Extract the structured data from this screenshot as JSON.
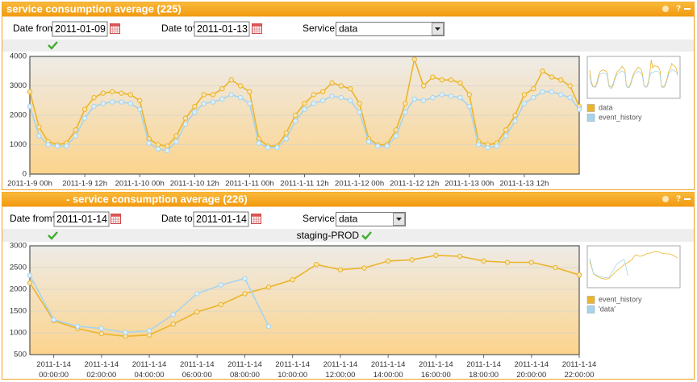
{
  "panels": [
    {
      "title": "service consumption average (225)",
      "form": {
        "date_from_label": "Date from",
        "date_from": "2011-01-09",
        "date_to_label": "Date to*",
        "date_to": "2011-01-13",
        "service_label": "Service*",
        "service": "data"
      }
    },
    {
      "title": "- service consumption average (226)",
      "form": {
        "date_from_label": "Date from*",
        "date_from": "2011-01-14",
        "date_to_label": "Date to*",
        "date_to": "2011-01-14",
        "service_label": "Service*",
        "service": "data"
      },
      "status": "staging-PROD"
    }
  ],
  "chart_data": [
    {
      "type": "line",
      "x": [
        0,
        2,
        4,
        6,
        8,
        10,
        12,
        14,
        16,
        18,
        20,
        22,
        24,
        26,
        28,
        30,
        32,
        34,
        36,
        38,
        40,
        42,
        44,
        46,
        48,
        50,
        52,
        54,
        56,
        58,
        60,
        62,
        64,
        66,
        68,
        70,
        72,
        74,
        76,
        78,
        80,
        82,
        84,
        86,
        88,
        90,
        92,
        94,
        96,
        98,
        100,
        102,
        104,
        106,
        108,
        110,
        112,
        114,
        116,
        118,
        120
      ],
      "series": [
        {
          "name": "data",
          "color": "#ebb42a",
          "values": [
            2800,
            1600,
            1100,
            1000,
            1050,
            1500,
            2200,
            2600,
            2750,
            2800,
            2750,
            2700,
            2500,
            1200,
            1000,
            950,
            1300,
            1900,
            2300,
            2700,
            2700,
            2900,
            3200,
            3000,
            2800,
            1200,
            950,
            950,
            1400,
            2000,
            2400,
            2700,
            2800,
            3100,
            3000,
            2900,
            2400,
            1200,
            1000,
            1000,
            1500,
            2400,
            3900,
            3000,
            3300,
            3200,
            3200,
            3100,
            2700,
            1100,
            1000,
            1050,
            1500,
            2000,
            2700,
            2900,
            3500,
            3300,
            3200,
            3000,
            2300
          ]
        },
        {
          "name": "event_history",
          "color": "#a6d4ee",
          "values": [
            2300,
            1300,
            1000,
            950,
            950,
            1300,
            1900,
            2300,
            2400,
            2450,
            2450,
            2400,
            2200,
            1050,
            850,
            800,
            1100,
            1700,
            2100,
            2400,
            2450,
            2550,
            2700,
            2600,
            2400,
            1050,
            900,
            900,
            1200,
            1800,
            2200,
            2400,
            2500,
            2650,
            2600,
            2500,
            2100,
            1100,
            950,
            950,
            1300,
            2100,
            2550,
            2500,
            2600,
            2700,
            2650,
            2600,
            2300,
            1000,
            900,
            950,
            1300,
            1800,
            2400,
            2600,
            2800,
            2800,
            2700,
            2600,
            2200
          ]
        }
      ],
      "xlim": [
        0,
        120
      ],
      "xticks": [
        {
          "value": 0,
          "label": "2011-1-9 00h"
        },
        {
          "value": 12,
          "label": "2011-1-9 12h"
        },
        {
          "value": 24,
          "label": "2011-1-10 00h"
        },
        {
          "value": 36,
          "label": "2011-1-10 12h"
        },
        {
          "value": 48,
          "label": "2011-1-11 00h"
        },
        {
          "value": 60,
          "label": "2011-1-11 12h"
        },
        {
          "value": 72,
          "label": "2011-1-12 00h"
        },
        {
          "value": 84,
          "label": "2011-1-12 12h"
        },
        {
          "value": 96,
          "label": "2011-1-13 00h"
        },
        {
          "value": 108,
          "label": "2011-1-13 12h"
        }
      ],
      "ylim": [
        0,
        4000
      ],
      "yticks": [
        0,
        1000,
        2000,
        3000,
        4000
      ],
      "grid": true
    },
    {
      "type": "line",
      "x": [
        -1,
        0,
        1,
        2,
        3,
        4,
        5,
        6,
        7,
        8,
        9,
        10,
        11,
        12,
        13,
        14,
        15,
        16,
        17,
        18,
        19,
        20,
        21,
        22
      ],
      "series": [
        {
          "name": "event_history",
          "color": "#ebb42a",
          "values": [
            2150,
            1280,
            1100,
            980,
            920,
            950,
            1200,
            1480,
            1650,
            1900,
            2050,
            2220,
            2570,
            2450,
            2490,
            2650,
            2680,
            2780,
            2760,
            2650,
            2620,
            2620,
            2500,
            2330
          ]
        },
        {
          "name": "'data'",
          "color": "#a6d4ee",
          "values": [
            2320,
            1300,
            1150,
            1100,
            1010,
            1050,
            1420,
            1900,
            2100,
            2250,
            1150,
            null,
            null,
            null,
            null,
            null,
            null,
            null,
            null,
            null,
            null,
            null,
            null,
            null
          ]
        }
      ],
      "xlim": [
        -1,
        22
      ],
      "xticks": [
        {
          "value": 0,
          "label": "2011-1-14 00:00:00"
        },
        {
          "value": 2,
          "label": "2011-1-14 02:00:00"
        },
        {
          "value": 4,
          "label": "2011-1-14 04:00:00"
        },
        {
          "value": 6,
          "label": "2011-1-14 06:00:00"
        },
        {
          "value": 8,
          "label": "2011-1-14 08:00:00"
        },
        {
          "value": 10,
          "label": "2011-1-14 10:00:00"
        },
        {
          "value": 12,
          "label": "2011-1-14 12:00:00"
        },
        {
          "value": 14,
          "label": "2011-1-14 14:00:00"
        },
        {
          "value": 16,
          "label": "2011-1-14 16:00:00"
        },
        {
          "value": 18,
          "label": "2011-1-14 18:00:00"
        },
        {
          "value": 20,
          "label": "2011-1-14 20:00:00"
        },
        {
          "value": 22,
          "label": "2011-1-14 22:00:00"
        }
      ],
      "ylim": [
        500,
        3000
      ],
      "yticks": [
        500,
        1000,
        1500,
        2000,
        2500,
        3000
      ],
      "grid": true
    }
  ]
}
